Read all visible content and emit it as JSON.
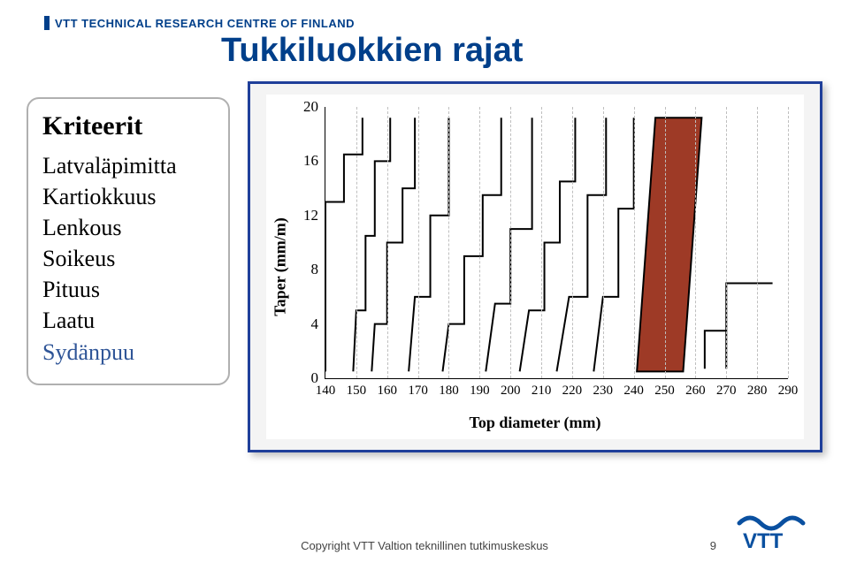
{
  "header": {
    "org": "VTT TECHNICAL RESEARCH CENTRE OF FINLAND"
  },
  "slide_title": "Tukkiluokkien rajat",
  "criteria": {
    "title": "Kriteerit",
    "items": [
      "Latvaläpimitta",
      "Kartiokkuus",
      "Lenkous",
      "Soikeus",
      "Pituus",
      "Laatu",
      "Sydänpuu"
    ]
  },
  "chart": {
    "type": "step-lines-with-polygon",
    "y_label": "Taper (mm/m)",
    "x_label": "Top diameter (mm)",
    "x": {
      "min": 140,
      "max": 290,
      "ticks": [
        140,
        150,
        160,
        170,
        180,
        190,
        200,
        210,
        220,
        230,
        240,
        250,
        260,
        270,
        280,
        290
      ]
    },
    "y": {
      "min": 0,
      "max": 20,
      "ticks": [
        0,
        4,
        8,
        12,
        16,
        20
      ]
    },
    "grid": {
      "v_color": "#bfbfbf",
      "dashed": true
    },
    "axis_color": "#000000",
    "plot_bg": "#ffffff",
    "panel_bg": "#f4f4f4",
    "border_color": "#1f3f9a",
    "step_color": "#000000",
    "step_width": 2,
    "highlight": {
      "fill": "#9e3a26",
      "stroke": "#000000",
      "stroke_width": 2,
      "poly_xy": [
        [
          241,
          0.5
        ],
        [
          247,
          19.2
        ],
        [
          262,
          19.2
        ],
        [
          256,
          0.5
        ]
      ],
      "trailing_steps": [
        [
          263,
          0.7,
          270,
          3.5
        ],
        [
          270,
          0.7,
          285,
          7.0
        ]
      ]
    },
    "steps": [
      [
        [
          140,
          0.5
        ],
        [
          140,
          13.0
        ],
        [
          146,
          13.0
        ],
        [
          146,
          16.5
        ],
        [
          152,
          16.5
        ],
        [
          152,
          19.2
        ]
      ],
      [
        [
          149,
          0.5
        ],
        [
          150,
          5.0
        ],
        [
          153,
          5.0
        ],
        [
          153,
          10.5
        ],
        [
          156,
          10.5
        ],
        [
          156,
          16.0
        ],
        [
          161,
          16.0
        ],
        [
          161,
          19.2
        ]
      ],
      [
        [
          155,
          0.5
        ],
        [
          156,
          4.0
        ],
        [
          160,
          4.0
        ],
        [
          160,
          10.0
        ],
        [
          165,
          10.0
        ],
        [
          165,
          14.0
        ],
        [
          169,
          14.0
        ],
        [
          169,
          19.2
        ]
      ],
      [
        [
          167,
          0.5
        ],
        [
          169,
          6.0
        ],
        [
          174,
          6.0
        ],
        [
          174,
          12.0
        ],
        [
          180,
          12.0
        ],
        [
          180,
          19.2
        ]
      ],
      [
        [
          178,
          0.5
        ],
        [
          180,
          4.0
        ],
        [
          185,
          4.0
        ],
        [
          185,
          9.0
        ],
        [
          191,
          9.0
        ],
        [
          191,
          13.5
        ],
        [
          197,
          13.5
        ],
        [
          197,
          19.2
        ]
      ],
      [
        [
          192,
          0.5
        ],
        [
          195,
          5.5
        ],
        [
          200,
          5.5
        ],
        [
          200,
          11.0
        ],
        [
          207,
          11.0
        ],
        [
          207,
          19.2
        ]
      ],
      [
        [
          203,
          0.5
        ],
        [
          206,
          5.0
        ],
        [
          211,
          5.0
        ],
        [
          211,
          10.0
        ],
        [
          216,
          10.0
        ],
        [
          216,
          14.5
        ],
        [
          221,
          14.5
        ],
        [
          221,
          19.2
        ]
      ],
      [
        [
          215,
          0.5
        ],
        [
          219,
          6.0
        ],
        [
          225,
          6.0
        ],
        [
          225,
          13.5
        ],
        [
          231,
          13.5
        ],
        [
          231,
          19.2
        ]
      ],
      [
        [
          227,
          0.5
        ],
        [
          230,
          6.0
        ],
        [
          235,
          6.0
        ],
        [
          235,
          12.5
        ],
        [
          240,
          12.5
        ],
        [
          240,
          19.2
        ]
      ]
    ]
  },
  "footer": {
    "copyright": "Copyright VTT Valtion teknillinen tutkimuskeskus",
    "page": "9"
  },
  "logo": {
    "stroke": "#0a50a0",
    "fill_text": "#0a50a0"
  }
}
